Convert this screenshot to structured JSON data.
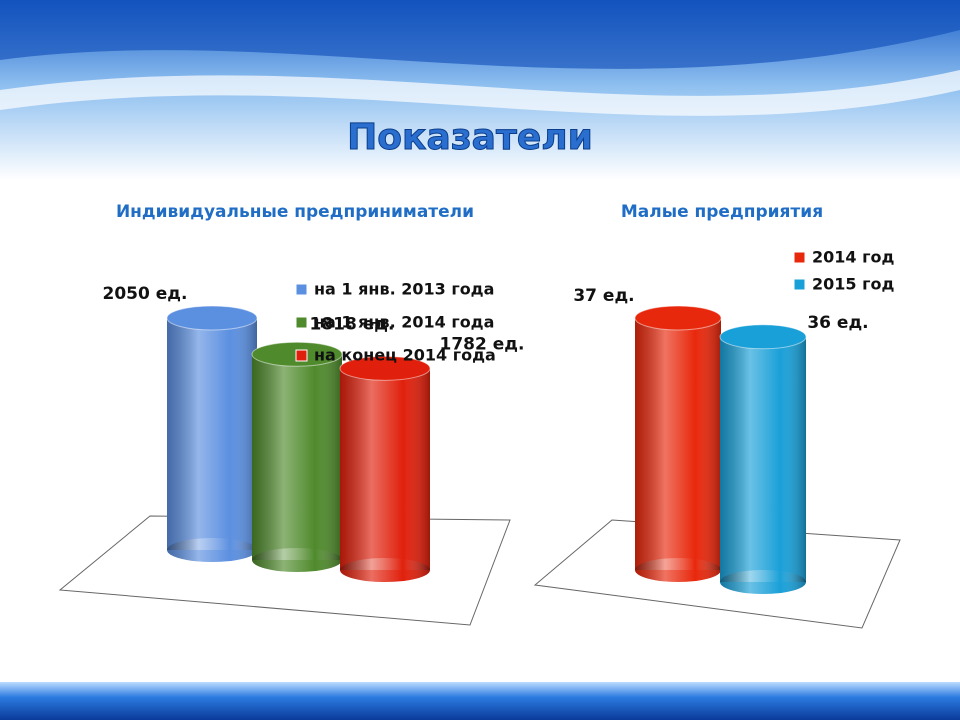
{
  "title": "Показатели",
  "chart_data": [
    {
      "type": "bar",
      "title": "Индивидуальные предприниматели",
      "categories": [
        null
      ],
      "series": [
        {
          "name": "на 1 янв. 2013 года",
          "color": "#5b8fe0",
          "values": [
            2050
          ],
          "value_labels": [
            "2050 ед."
          ]
        },
        {
          "name": "на 1 янв. 2014 года",
          "color": "#4f8a2c",
          "values": [
            1818
          ],
          "value_labels": [
            "1818 ед."
          ]
        },
        {
          "name": "на конец 2014 года",
          "color": "#e0200c",
          "values": [
            1782
          ],
          "value_labels": [
            "1782 ед."
          ]
        }
      ]
    },
    {
      "type": "bar",
      "title": "Малые предприятия",
      "categories": [
        null
      ],
      "series": [
        {
          "name": "2014 год",
          "color": "#e8280c",
          "values": [
            37
          ],
          "value_labels": [
            "37 ед."
          ]
        },
        {
          "name": "2015 год",
          "color": "#1aa0d8",
          "values": [
            36
          ],
          "value_labels": [
            "36 ед."
          ]
        }
      ]
    }
  ]
}
